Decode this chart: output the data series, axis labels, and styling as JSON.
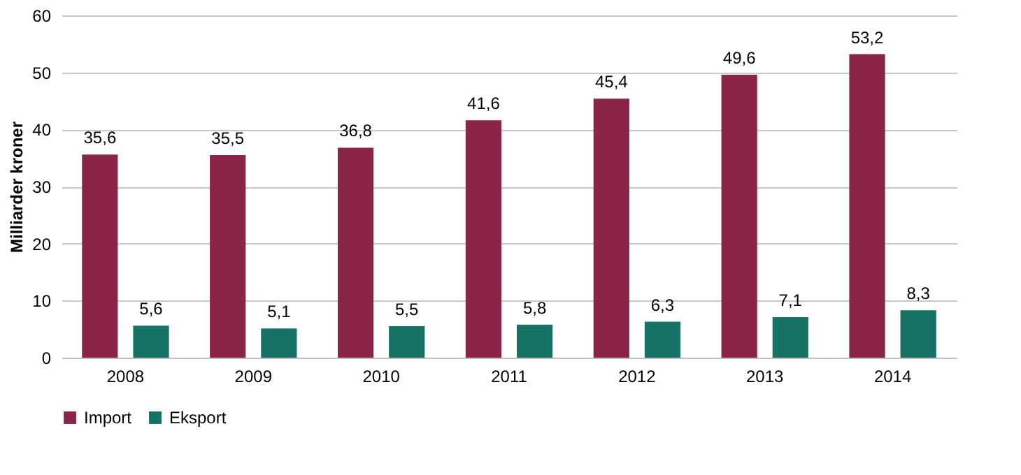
{
  "chart_data": {
    "type": "bar",
    "ylabel": "Milliarder kroner",
    "categories": [
      "2008",
      "2009",
      "2010",
      "2011",
      "2012",
      "2013",
      "2014"
    ],
    "series": [
      {
        "name": "Import",
        "color": "#8a2548",
        "values": [
          35.6,
          35.5,
          36.8,
          41.6,
          45.4,
          49.6,
          53.2
        ],
        "value_labels": [
          "35,6",
          "35,5",
          "36,8",
          "41,6",
          "45,4",
          "49,6",
          "53,2"
        ]
      },
      {
        "name": "Eksport",
        "color": "#177266",
        "values": [
          5.6,
          5.1,
          5.5,
          5.8,
          6.3,
          7.1,
          8.3
        ],
        "value_labels": [
          "5,6",
          "5,1",
          "5,5",
          "5,8",
          "6,3",
          "7,1",
          "8,3"
        ]
      }
    ],
    "ylim": [
      0,
      60
    ],
    "yticks": [
      0,
      10,
      20,
      30,
      40,
      50,
      60
    ],
    "grid": "y",
    "legend": "bottom"
  }
}
